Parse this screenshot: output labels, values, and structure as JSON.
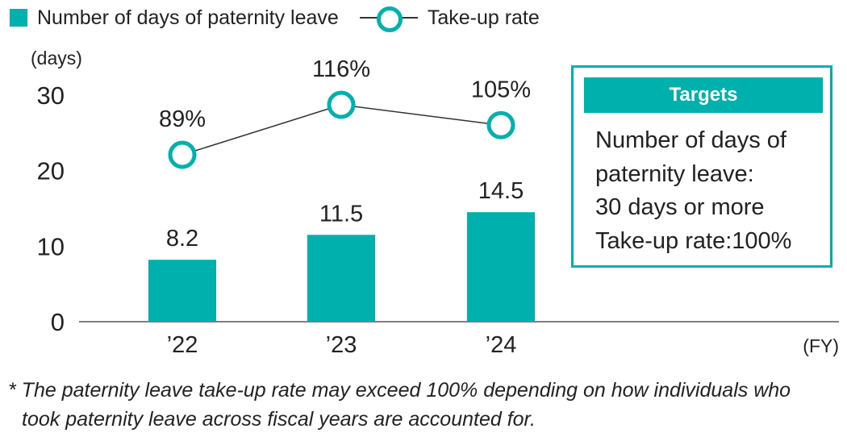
{
  "legend": {
    "bars_label": "Number of days of paternity leave",
    "line_label": "Take-up rate"
  },
  "chart_data": {
    "type": "bar",
    "categories": [
      "’22",
      "’23",
      "’24"
    ],
    "series": [
      {
        "name": "Number of days of paternity leave",
        "type": "bar",
        "values": [
          8.2,
          11.5,
          14.5
        ],
        "labels": [
          "8.2",
          "11.5",
          "14.5"
        ]
      },
      {
        "name": "Take-up rate",
        "type": "line",
        "values": [
          89,
          116,
          105
        ],
        "labels": [
          "89%",
          "116%",
          "105%"
        ]
      }
    ],
    "ylabel": "(days)",
    "xlabel": "(FY)",
    "ylim": [
      0,
      30
    ],
    "yticks": [
      "0",
      "10",
      "20",
      "30"
    ],
    "grid": false,
    "legend_position": "top-left",
    "colors": {
      "bar": "#00b0ad",
      "line": "#333333",
      "marker": "#00b0ad",
      "axis": "#555555"
    }
  },
  "targets": {
    "title": "Targets",
    "lines": [
      "Number of days of",
      "paternity leave:",
      "30 days or more",
      "Take-up rate:100%"
    ]
  },
  "footnote": {
    "line1": "* The paternity leave take-up rate may exceed 100% depending on how individuals who",
    "line2": "took paternity leave across fiscal years are accounted for."
  }
}
